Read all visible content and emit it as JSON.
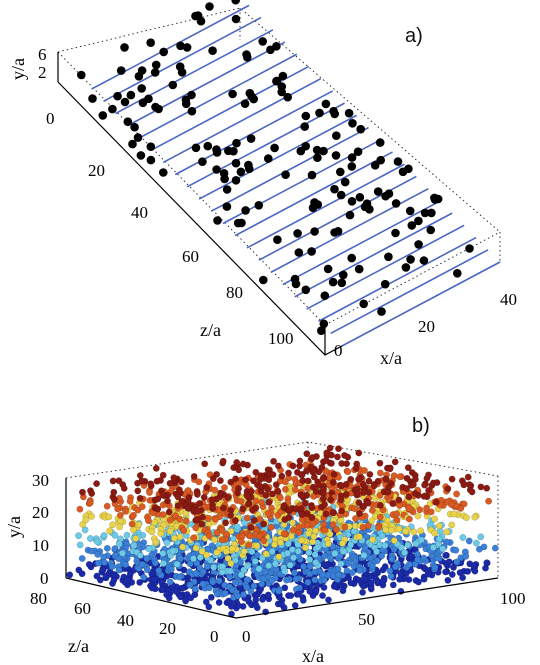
{
  "chart_data": [
    {
      "panel": "a)",
      "type": "scatter",
      "dimensions": 3,
      "xlabel": "x/a",
      "ylabel": "y/a",
      "zlabel": "z/a",
      "xlim": [
        0,
        40
      ],
      "ylim": [
        0,
        6
      ],
      "zlim": [
        0,
        100
      ],
      "xticks": [
        "0",
        "20",
        "40"
      ],
      "yticks": [
        "2",
        "6"
      ],
      "zticks": [
        "0",
        "20",
        "40",
        "60",
        "80",
        "100"
      ],
      "marker_color": "#000000",
      "line_color": "#4a67c4",
      "guide_lines_along_x": 22
    },
    {
      "panel": "b)",
      "type": "scatter",
      "dimensions": 3,
      "xlabel": "x/a",
      "ylabel": "y/a",
      "zlabel": "z/a",
      "xlim": [
        0,
        100
      ],
      "ylim": [
        0,
        30
      ],
      "zlim": [
        0,
        80
      ],
      "xticks": [
        "0",
        "50",
        "100"
      ],
      "yticks": [
        "0",
        "10",
        "20",
        "30"
      ],
      "zticks": [
        "0",
        "20",
        "40",
        "60",
        "80"
      ],
      "colormap": "jet (by y)",
      "colormap_colors": [
        "#1a2aa8",
        "#3a7fd8",
        "#6cc9e8",
        "#e8d24a",
        "#d95a22",
        "#8a1a12"
      ]
    }
  ]
}
